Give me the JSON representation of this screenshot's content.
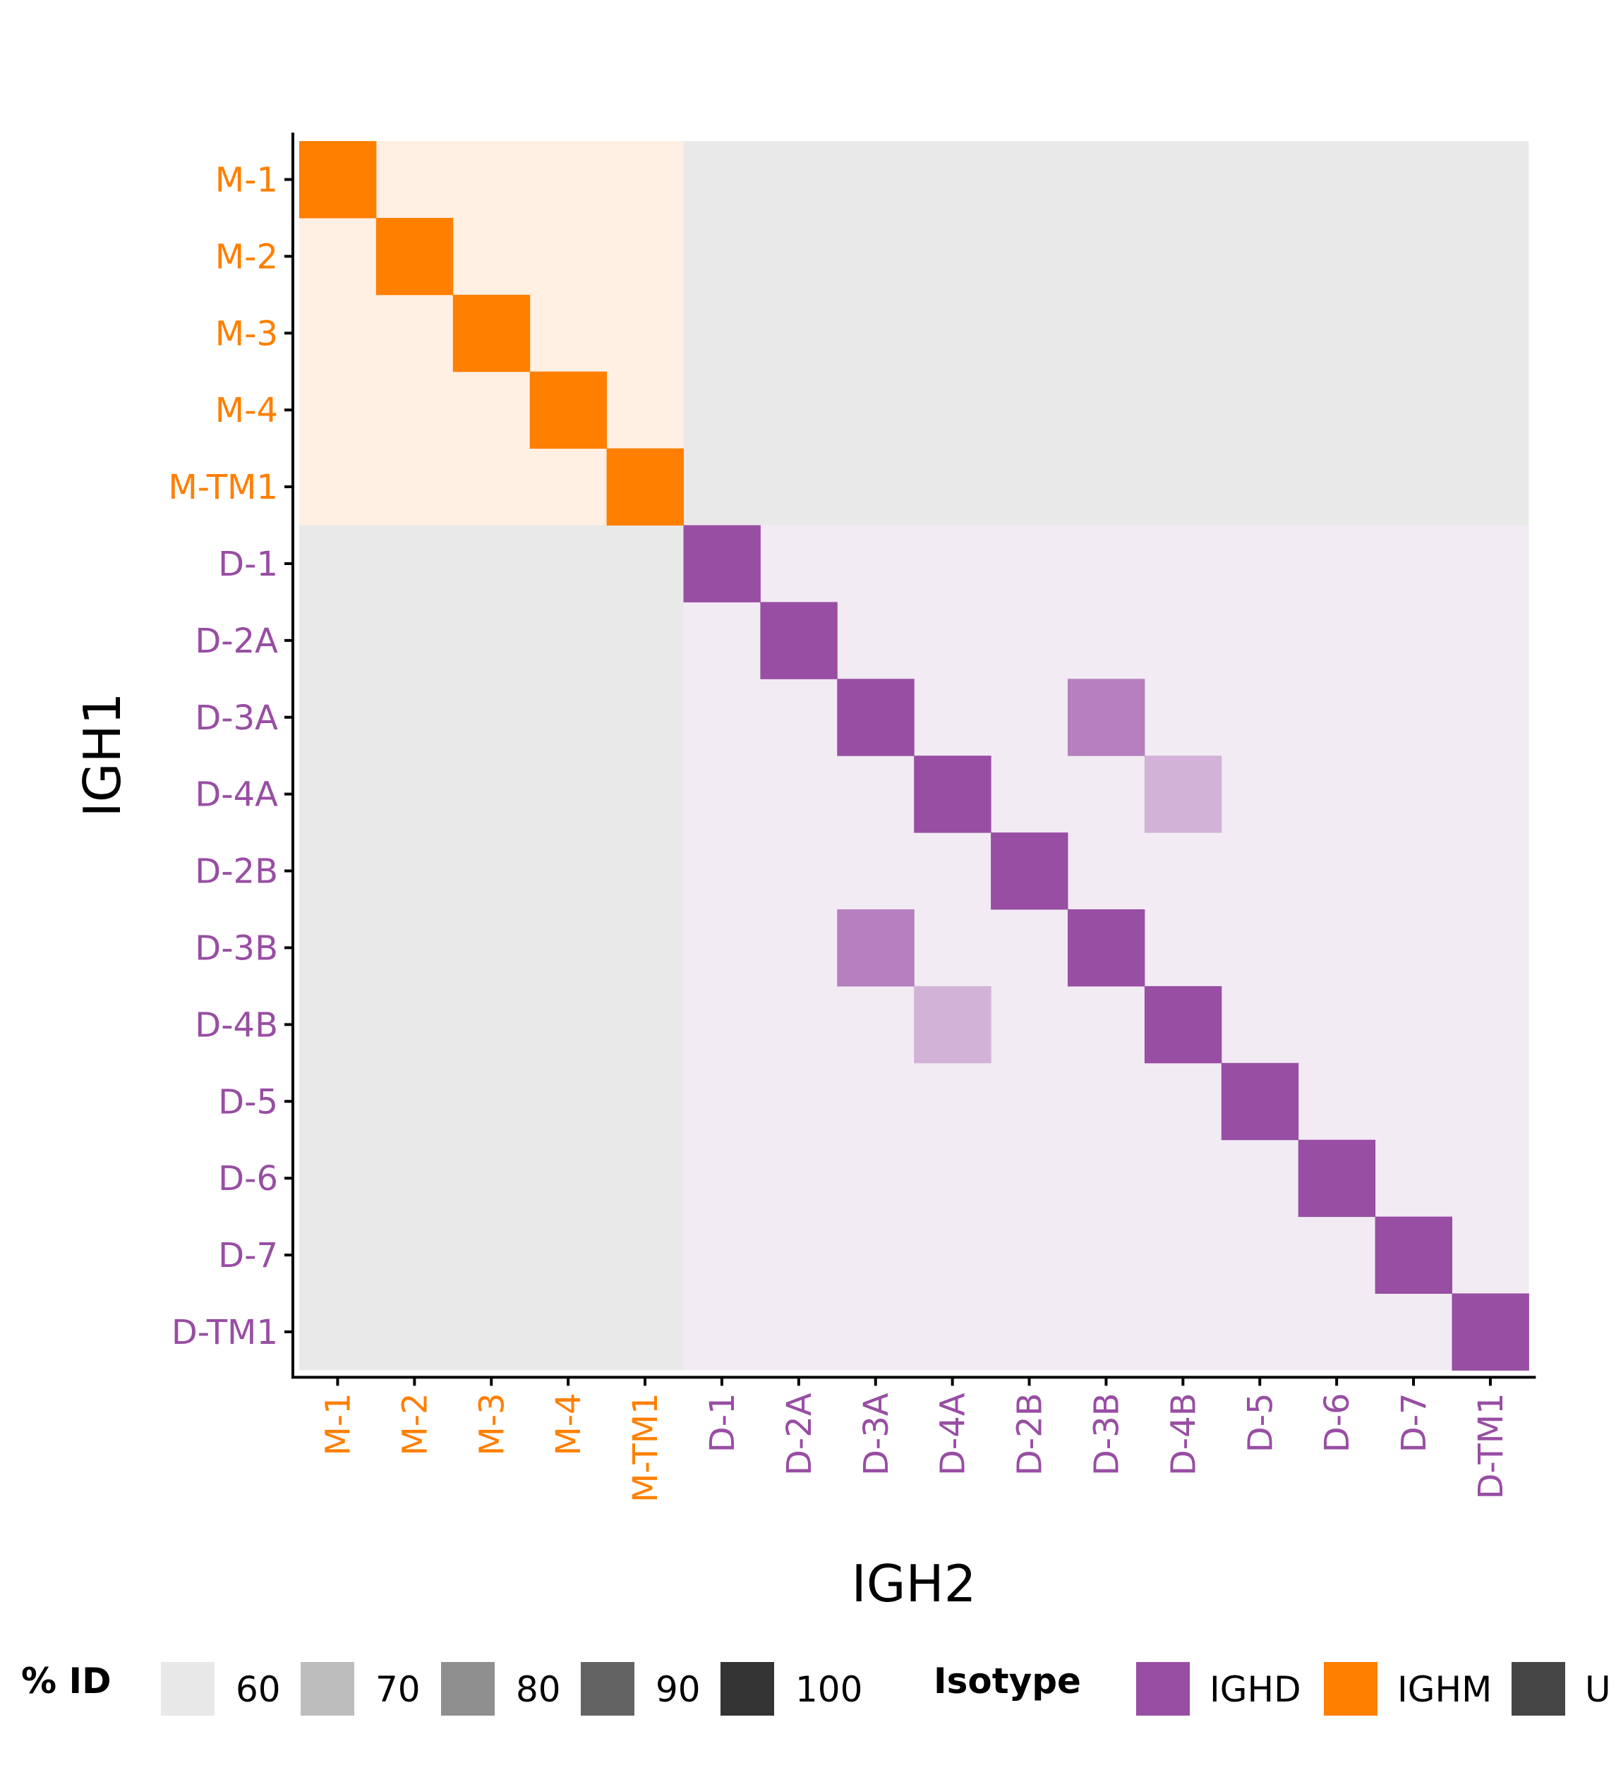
{
  "chart_data": {
    "type": "heatmap",
    "xlabel": "IGH2",
    "ylabel": "IGH1",
    "categories": [
      "M-1",
      "M-2",
      "M-3",
      "M-4",
      "M-TM1",
      "D-1",
      "D-2A",
      "D-3A",
      "D-4A",
      "D-2B",
      "D-3B",
      "D-4B",
      "D-5",
      "D-6",
      "D-7",
      "D-TM1"
    ],
    "category_isotype": [
      "IGHM",
      "IGHM",
      "IGHM",
      "IGHM",
      "IGHM",
      "IGHD",
      "IGHD",
      "IGHD",
      "IGHD",
      "IGHD",
      "IGHD",
      "IGHD",
      "IGHD",
      "IGHD",
      "IGHD",
      "IGHD"
    ],
    "isotype_blocks": [
      {
        "isotype": "IGHM",
        "rows": [
          "M-1",
          "M-TM1"
        ],
        "cols": [
          "M-1",
          "M-TM1"
        ]
      },
      {
        "isotype": "IGHD",
        "rows": [
          "D-1",
          "D-TM1"
        ],
        "cols": [
          "D-1",
          "D-TM1"
        ]
      }
    ],
    "cells": [
      {
        "y": "M-1",
        "x": "M-1",
        "pct_id": 100,
        "isotype": "IGHM"
      },
      {
        "y": "M-2",
        "x": "M-2",
        "pct_id": 100,
        "isotype": "IGHM"
      },
      {
        "y": "M-3",
        "x": "M-3",
        "pct_id": 100,
        "isotype": "IGHM"
      },
      {
        "y": "M-4",
        "x": "M-4",
        "pct_id": 100,
        "isotype": "IGHM"
      },
      {
        "y": "M-TM1",
        "x": "M-TM1",
        "pct_id": 100,
        "isotype": "IGHM"
      },
      {
        "y": "D-1",
        "x": "D-1",
        "pct_id": 100,
        "isotype": "IGHD"
      },
      {
        "y": "D-2A",
        "x": "D-2A",
        "pct_id": 100,
        "isotype": "IGHD"
      },
      {
        "y": "D-3A",
        "x": "D-3A",
        "pct_id": 100,
        "isotype": "IGHD"
      },
      {
        "y": "D-3A",
        "x": "D-3B",
        "pct_id": 85,
        "isotype": "IGHD"
      },
      {
        "y": "D-4A",
        "x": "D-4A",
        "pct_id": 100,
        "isotype": "IGHD"
      },
      {
        "y": "D-4A",
        "x": "D-4B",
        "pct_id": 70,
        "isotype": "IGHD"
      },
      {
        "y": "D-2B",
        "x": "D-2B",
        "pct_id": 100,
        "isotype": "IGHD"
      },
      {
        "y": "D-3B",
        "x": "D-3A",
        "pct_id": 85,
        "isotype": "IGHD"
      },
      {
        "y": "D-3B",
        "x": "D-3B",
        "pct_id": 100,
        "isotype": "IGHD"
      },
      {
        "y": "D-4B",
        "x": "D-4A",
        "pct_id": 70,
        "isotype": "IGHD"
      },
      {
        "y": "D-4B",
        "x": "D-4B",
        "pct_id": 100,
        "isotype": "IGHD"
      },
      {
        "y": "D-5",
        "x": "D-5",
        "pct_id": 100,
        "isotype": "IGHD"
      },
      {
        "y": "D-6",
        "x": "D-6",
        "pct_id": 100,
        "isotype": "IGHD"
      },
      {
        "y": "D-7",
        "x": "D-7",
        "pct_id": 100,
        "isotype": "IGHD"
      },
      {
        "y": "D-TM1",
        "x": "D-TM1",
        "pct_id": 100,
        "isotype": "IGHD"
      }
    ],
    "legend_pct_id": {
      "title": "% ID",
      "entries": [
        {
          "label": "60",
          "color": "#e8e8e8"
        },
        {
          "label": "70",
          "color": "#bdbdbd"
        },
        {
          "label": "80",
          "color": "#8f8f8f"
        },
        {
          "label": "90",
          "color": "#636363"
        },
        {
          "label": "100",
          "color": "#333333"
        }
      ]
    },
    "legend_isotype": {
      "title": "Isotype",
      "entries": [
        {
          "label": "IGHD",
          "color": "#984ea3"
        },
        {
          "label": "IGHM",
          "color": "#ff7f00"
        },
        {
          "label": "U",
          "color": "#454545"
        }
      ]
    },
    "colors": {
      "IGHD": "#984ea3",
      "IGHM": "#ff7f00",
      "IGHD_block_bg": "#f2ebf4",
      "IGHM_block_bg": "#fff0e3",
      "cross_block_bg": "#e9e9e9",
      "text": "#000000"
    },
    "pct_id_range": [
      60,
      100
    ],
    "grid": false,
    "legend_position": "bottom"
  }
}
